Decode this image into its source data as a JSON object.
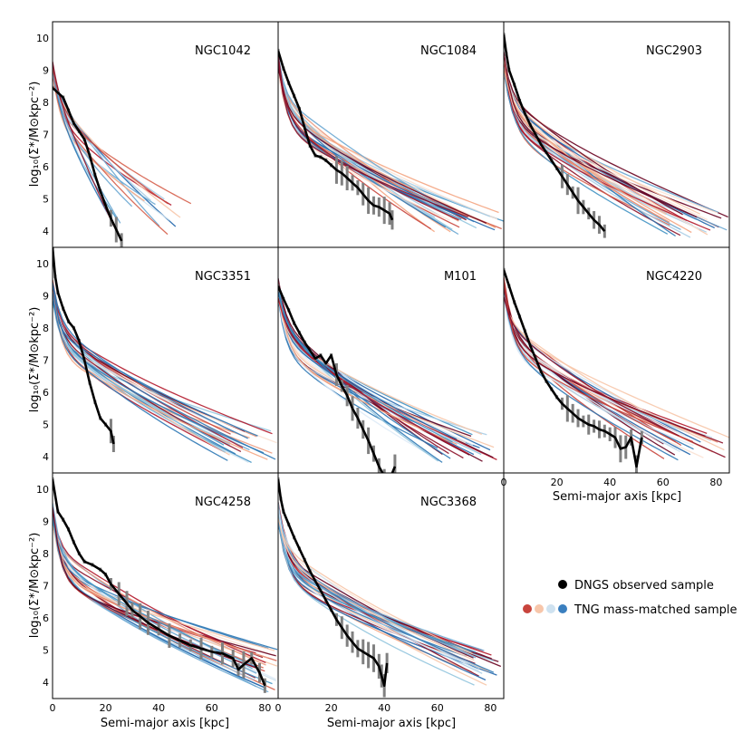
{
  "figure": {
    "ylabel": "log₁₀(Σ*/M⊙kpc⁻²)",
    "xlabel": "Semi-major axis [kpc]",
    "legend": {
      "observed": "DNGS observed sample",
      "tng": "TNG mass-matched sample",
      "tng_swatch_colors": [
        "#c8443c",
        "#f7c6aa",
        "#cfe2f0",
        "#3a7fbf"
      ]
    }
  },
  "colors": {
    "observed": "#000000",
    "observed_error": "#808080",
    "tng_palette": [
      "#67001f",
      "#8b1028",
      "#b2182b",
      "#c8443c",
      "#d6604d",
      "#ec9a7e",
      "#f4a582",
      "#f7c6aa",
      "#fbe2d4",
      "#deebf7",
      "#cfe2f0",
      "#a9cde6",
      "#92c5de",
      "#6aa7d1",
      "#4393c3",
      "#2f79b5",
      "#2166ac"
    ]
  },
  "chart_data": [
    {
      "type": "line",
      "galaxy": "NGC1042",
      "xlim": [
        0,
        85
      ],
      "ylim": [
        3.5,
        10.5
      ],
      "xticks": [
        0,
        20,
        40,
        60,
        80
      ],
      "yticks": [
        4,
        5,
        6,
        7,
        8,
        9,
        10
      ],
      "show_xtick_labels": false,
      "show_ytick_labels": true,
      "show_xlabel": false,
      "observed": {
        "x": [
          0,
          2,
          4,
          6,
          8,
          10,
          12,
          14,
          16,
          18,
          20,
          22,
          24,
          26
        ],
        "y": [
          8.45,
          8.3,
          8.15,
          7.75,
          7.35,
          7.1,
          6.85,
          6.35,
          5.75,
          5.25,
          4.8,
          4.4,
          4.05,
          3.7
        ]
      },
      "tng": {
        "count": 18,
        "x_end": [
          20,
          55
        ],
        "y_end": [
          3.9,
          5.0
        ],
        "y_start": [
          8.8,
          9.3
        ]
      }
    },
    {
      "type": "line",
      "galaxy": "NGC1084",
      "xlim": [
        0,
        85
      ],
      "ylim": [
        3.5,
        10.5
      ],
      "xticks": [
        0,
        20,
        40,
        60,
        80
      ],
      "yticks": [
        4,
        5,
        6,
        7,
        8,
        9,
        10
      ],
      "show_xtick_labels": false,
      "show_ytick_labels": false,
      "show_xlabel": false,
      "observed": {
        "x": [
          0,
          2,
          4,
          6,
          8,
          10,
          12,
          14,
          16,
          18,
          20,
          22,
          24,
          26,
          28,
          30,
          32,
          34,
          36,
          38,
          40,
          42,
          43
        ],
        "y": [
          9.6,
          9.05,
          8.6,
          8.2,
          7.8,
          7.2,
          6.65,
          6.35,
          6.3,
          6.2,
          6.05,
          5.9,
          5.8,
          5.65,
          5.5,
          5.35,
          5.15,
          4.95,
          4.8,
          4.75,
          4.65,
          4.55,
          4.35
        ]
      },
      "tng": {
        "count": 30,
        "x_end": [
          55,
          85
        ],
        "y_end": [
          3.9,
          4.6
        ],
        "y_start": [
          8.9,
          9.6
        ]
      }
    },
    {
      "type": "line",
      "galaxy": "NGC2903",
      "xlim": [
        0,
        85
      ],
      "ylim": [
        3.5,
        10.5
      ],
      "xticks": [
        0,
        20,
        40,
        60,
        80
      ],
      "yticks": [
        4,
        5,
        6,
        7,
        8,
        9,
        10
      ],
      "show_xtick_labels": false,
      "show_ytick_labels": false,
      "show_xlabel": false,
      "observed": {
        "x": [
          0,
          1,
          2,
          4,
          6,
          8,
          10,
          12,
          14,
          16,
          18,
          20,
          22,
          24,
          26,
          28,
          30,
          32,
          34,
          36,
          38
        ],
        "y": [
          10.1,
          9.5,
          9.0,
          8.55,
          8.05,
          7.65,
          7.3,
          7.0,
          6.7,
          6.45,
          6.2,
          5.95,
          5.7,
          5.45,
          5.2,
          4.95,
          4.75,
          4.55,
          4.35,
          4.2,
          4.0
        ]
      },
      "tng": {
        "count": 30,
        "x_end": [
          60,
          85
        ],
        "y_end": [
          3.8,
          4.6
        ],
        "y_start": [
          8.9,
          9.6
        ]
      }
    },
    {
      "type": "line",
      "galaxy": "NGC3351",
      "xlim": [
        0,
        85
      ],
      "ylim": [
        3.5,
        10.5
      ],
      "xticks": [
        0,
        20,
        40,
        60,
        80
      ],
      "yticks": [
        4,
        5,
        6,
        7,
        8,
        9,
        10
      ],
      "show_xtick_labels": false,
      "show_ytick_labels": true,
      "show_xlabel": false,
      "observed": {
        "x": [
          0,
          1,
          2,
          4,
          6,
          8,
          10,
          12,
          14,
          16,
          18,
          20,
          22,
          23
        ],
        "y": [
          10.5,
          9.6,
          9.1,
          8.6,
          8.2,
          8.0,
          7.6,
          7.0,
          6.3,
          5.7,
          5.2,
          5.0,
          4.8,
          4.4
        ]
      },
      "tng": {
        "count": 30,
        "x_end": [
          60,
          85
        ],
        "y_end": [
          3.8,
          4.8
        ],
        "y_start": [
          8.8,
          9.6
        ]
      }
    },
    {
      "type": "line",
      "galaxy": "M101",
      "xlim": [
        0,
        85
      ],
      "ylim": [
        3.5,
        10.5
      ],
      "xticks": [
        0,
        20,
        40,
        60,
        80
      ],
      "yticks": [
        4,
        5,
        6,
        7,
        8,
        9,
        10
      ],
      "show_xtick_labels": false,
      "show_ytick_labels": false,
      "show_xlabel": false,
      "observed": {
        "x": [
          0,
          2,
          4,
          6,
          8,
          10,
          12,
          14,
          16,
          18,
          20,
          22,
          24,
          26,
          28,
          30,
          32,
          34,
          36,
          38,
          40,
          42,
          44
        ],
        "y": [
          9.3,
          8.9,
          8.55,
          8.15,
          7.85,
          7.55,
          7.3,
          7.05,
          7.15,
          6.9,
          7.15,
          6.55,
          6.2,
          5.9,
          5.5,
          5.2,
          4.85,
          4.5,
          4.1,
          3.7,
          3.4,
          3.3,
          3.7
        ]
      },
      "tng": {
        "count": 30,
        "x_end": [
          60,
          85
        ],
        "y_end": [
          3.8,
          4.8
        ],
        "y_start": [
          8.9,
          9.6
        ]
      }
    },
    {
      "type": "line",
      "galaxy": "NGC4220",
      "xlim": [
        0,
        85
      ],
      "ylim": [
        3.5,
        10.5
      ],
      "xticks": [
        0,
        20,
        40,
        60,
        80
      ],
      "yticks": [
        4,
        5,
        6,
        7,
        8,
        9,
        10
      ],
      "show_xtick_labels": true,
      "show_ytick_labels": false,
      "show_xlabel": true,
      "observed": {
        "x": [
          0,
          2,
          4,
          6,
          8,
          10,
          12,
          14,
          16,
          18,
          20,
          22,
          24,
          26,
          28,
          30,
          32,
          34,
          36,
          38,
          40,
          42,
          44,
          46,
          48,
          50,
          52
        ],
        "y": [
          9.8,
          9.3,
          8.8,
          8.35,
          7.9,
          7.45,
          7.05,
          6.65,
          6.35,
          6.1,
          5.85,
          5.65,
          5.5,
          5.35,
          5.2,
          5.1,
          5.0,
          4.95,
          4.85,
          4.8,
          4.7,
          4.6,
          4.25,
          4.3,
          4.6,
          3.7,
          4.6
        ]
      },
      "tng": {
        "count": 30,
        "x_end": [
          60,
          85
        ],
        "y_end": [
          3.9,
          4.8
        ],
        "y_start": [
          8.9,
          9.6
        ]
      }
    },
    {
      "type": "line",
      "galaxy": "NGC4258",
      "xlim": [
        0,
        85
      ],
      "ylim": [
        3.5,
        10.5
      ],
      "xticks": [
        0,
        20,
        40,
        60,
        80
      ],
      "yticks": [
        4,
        5,
        6,
        7,
        8,
        9,
        10
      ],
      "show_xtick_labels": true,
      "show_ytick_labels": true,
      "show_xlabel": true,
      "observed": {
        "x": [
          0,
          2,
          4,
          6,
          8,
          10,
          12,
          15,
          18,
          20,
          22,
          25,
          28,
          30,
          33,
          36,
          40,
          44,
          48,
          52,
          56,
          60,
          64,
          68,
          70,
          72,
          75,
          78,
          80
        ],
        "y": [
          10.3,
          9.3,
          9.05,
          8.75,
          8.35,
          8.0,
          7.75,
          7.65,
          7.5,
          7.35,
          7.05,
          6.75,
          6.45,
          6.25,
          6.05,
          5.85,
          5.65,
          5.45,
          5.3,
          5.15,
          5.05,
          4.95,
          4.9,
          4.75,
          4.4,
          4.55,
          4.75,
          4.3,
          3.9
        ]
      },
      "tng": {
        "count": 30,
        "x_end": [
          75,
          85
        ],
        "y_end": [
          3.7,
          5.1
        ],
        "y_start": [
          8.9,
          9.6
        ]
      }
    },
    {
      "type": "line",
      "galaxy": "NGC3368",
      "xlim": [
        0,
        85
      ],
      "ylim": [
        3.5,
        10.5
      ],
      "xticks": [
        0,
        20,
        40,
        60,
        80
      ],
      "yticks": [
        4,
        5,
        6,
        7,
        8,
        9,
        10
      ],
      "show_xtick_labels": true,
      "show_ytick_labels": false,
      "show_xlabel": true,
      "observed": {
        "x": [
          0,
          1,
          2,
          4,
          6,
          8,
          10,
          12,
          14,
          16,
          18,
          20,
          22,
          24,
          26,
          28,
          30,
          32,
          34,
          36,
          38,
          39,
          40,
          41
        ],
        "y": [
          10.3,
          9.7,
          9.3,
          8.9,
          8.5,
          8.15,
          7.8,
          7.45,
          7.15,
          6.85,
          6.55,
          6.25,
          5.95,
          5.7,
          5.45,
          5.25,
          5.05,
          4.95,
          4.85,
          4.75,
          4.5,
          4.2,
          3.9,
          4.6
        ]
      },
      "tng": {
        "count": 30,
        "x_end": [
          70,
          85
        ],
        "y_end": [
          3.9,
          5.0
        ],
        "y_start": [
          8.9,
          9.6
        ]
      }
    }
  ]
}
